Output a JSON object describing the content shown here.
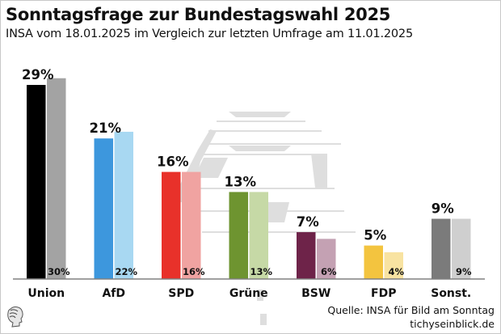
{
  "title": "Sonntagsfrage zur Bundestagswahl 2025",
  "subtitle": "INSA vom 18.01.2025 im Vergleich zur letzten Umfrage am 11.01.2025",
  "source_line1": "Quelle: INSA für Bild am Sonntag",
  "source_line2": "tichyseinblick.de",
  "chart_data": {
    "type": "bar",
    "title": "Sonntagsfrage zur Bundestagswahl 2025",
    "subtitle": "INSA vom 18.01.2025 im Vergleich zur letzten Umfrage am 11.01.2025",
    "xlabel": "",
    "ylabel": "",
    "ylim": [
      0,
      30
    ],
    "grid": false,
    "legend": "none",
    "categories": [
      "Union",
      "AfD",
      "SPD",
      "Grüne",
      "BSW",
      "FDP",
      "Sonst."
    ],
    "series": [
      {
        "name": "18.01.2025",
        "values": [
          29,
          21,
          16,
          13,
          7,
          5,
          9
        ],
        "labels": [
          "29%",
          "21%",
          "16%",
          "13%",
          "7%",
          "5%",
          "9%"
        ],
        "colors": [
          "#000000",
          "#3d97dd",
          "#e8312a",
          "#6e9430",
          "#6e2349",
          "#f3c43f",
          "#7b7b7b"
        ]
      },
      {
        "name": "11.01.2025",
        "values": [
          30,
          22,
          16,
          13,
          6,
          4,
          9
        ],
        "labels": [
          "30%",
          "22%",
          "16%",
          "13%",
          "6%",
          "4%",
          "9%"
        ],
        "colors": [
          "#a3a3a3",
          "#a8d8f2",
          "#f0a3a1",
          "#c6d9a6",
          "#c4a1b3",
          "#f8e3a1",
          "#cfcfcf"
        ]
      }
    ]
  }
}
